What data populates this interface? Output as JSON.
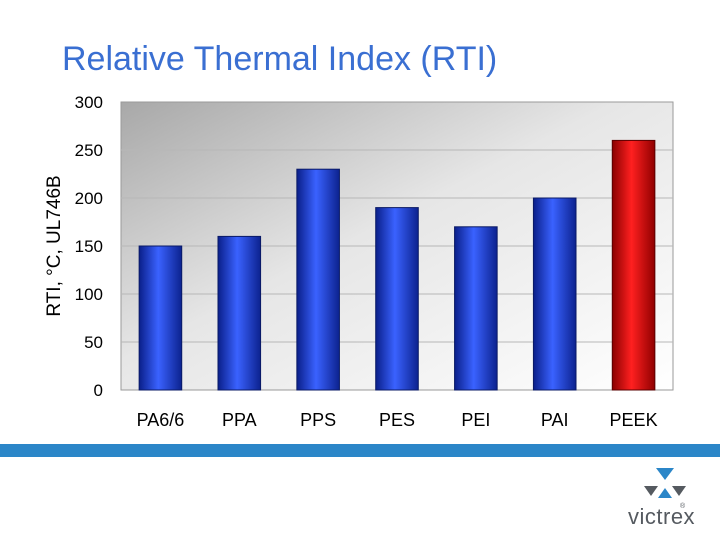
{
  "slide": {
    "title": "Relative Thermal Index (RTI)"
  },
  "chart_data": {
    "type": "bar",
    "title": "",
    "xlabel": "",
    "ylabel": "RTI, °C, UL746B",
    "categories": [
      "PA6/6",
      "PPA",
      "PPS",
      "PES",
      "PEI",
      "PAI",
      "PEEK"
    ],
    "values": [
      150,
      160,
      230,
      190,
      170,
      200,
      260
    ],
    "ylim": [
      0,
      300
    ],
    "yticks": [
      0,
      50,
      100,
      150,
      200,
      250,
      300
    ],
    "grid": true,
    "legend": "none",
    "colors": {
      "default_bar": "#1f3fd8",
      "highlight_bar": "#e01010",
      "highlight_category": "PEEK",
      "gridline": "#b7b7b7"
    }
  },
  "logo": {
    "word": "victrex",
    "mark": "®",
    "colors": [
      "#2b86c8",
      "#555a60"
    ]
  }
}
